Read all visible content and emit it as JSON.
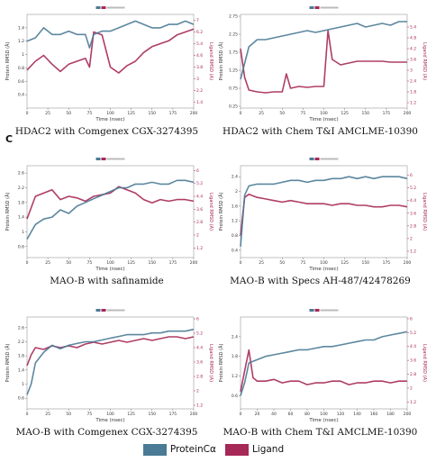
{
  "section_label": "C",
  "colors": {
    "protein": "#4a7a95",
    "ligand": "#a62856"
  },
  "legend": [
    {
      "label": "ProteinCα",
      "color": "#4a7a95"
    },
    {
      "label": "Ligand",
      "color": "#a62856"
    }
  ],
  "chart_data": [
    {
      "type": "line",
      "caption": "HDAC2 with Comgenex CGX-3274395",
      "xlabel": "Time (nsec)",
      "ylabel": "Protein RMSD (Å)",
      "y2label": "Ligand RMSD (Å)",
      "xlim": [
        0,
        200
      ],
      "ylim": [
        0.2,
        1.6
      ],
      "y2lim": [
        1.0,
        7.4
      ],
      "xticks": [
        0,
        25,
        50,
        75,
        100,
        125,
        150,
        175,
        200
      ],
      "yticks": [
        0.4,
        0.6,
        0.8,
        1.0,
        1.2,
        1.4
      ],
      "y2ticks": [
        1.4,
        2.2,
        3.0,
        3.8,
        4.6,
        5.4,
        6.2,
        7.0
      ],
      "series": [
        {
          "name": "ProteinCα",
          "axis": "left",
          "x": [
            0,
            10,
            20,
            30,
            40,
            50,
            60,
            70,
            75,
            80,
            90,
            100,
            110,
            120,
            130,
            140,
            150,
            160,
            170,
            180,
            190,
            200
          ],
          "values": [
            1.2,
            1.25,
            1.4,
            1.3,
            1.3,
            1.35,
            1.3,
            1.3,
            1.1,
            1.3,
            1.35,
            1.35,
            1.4,
            1.45,
            1.5,
            1.45,
            1.4,
            1.4,
            1.45,
            1.45,
            1.5,
            1.45
          ]
        },
        {
          "name": "Ligand",
          "axis": "right",
          "x": [
            0,
            10,
            20,
            30,
            40,
            50,
            60,
            70,
            75,
            80,
            90,
            100,
            110,
            120,
            130,
            140,
            150,
            160,
            170,
            180,
            190,
            200
          ],
          "values": [
            3.6,
            4.2,
            4.6,
            4.0,
            3.5,
            4.0,
            4.2,
            4.4,
            3.8,
            6.2,
            6.0,
            3.8,
            3.4,
            3.9,
            4.2,
            4.8,
            5.2,
            5.4,
            5.6,
            6.0,
            6.2,
            6.4
          ]
        }
      ]
    },
    {
      "type": "line",
      "caption": "HDAC2 with Chem T&I AMCLME-10390",
      "xlabel": "Time (nsec)",
      "ylabel": "Protein RMSD (Å)",
      "y2label": "Ligand RMSD (Å)",
      "xlim": [
        0,
        200
      ],
      "ylim": [
        0.2,
        2.8
      ],
      "y2lim": [
        0.9,
        6.1
      ],
      "xticks": [
        0,
        25,
        50,
        75,
        100,
        125,
        150,
        175,
        200
      ],
      "yticks": [
        0.25,
        0.75,
        1.25,
        1.75,
        2.25,
        2.75
      ],
      "y2ticks": [
        1.2,
        1.8,
        2.4,
        3.0,
        3.6,
        4.2,
        4.8,
        5.4
      ],
      "series": [
        {
          "name": "ProteinCα",
          "axis": "left",
          "x": [
            0,
            10,
            20,
            30,
            40,
            50,
            60,
            70,
            80,
            90,
            100,
            110,
            120,
            130,
            140,
            150,
            160,
            170,
            180,
            190,
            200
          ],
          "values": [
            1.0,
            1.9,
            2.1,
            2.1,
            2.15,
            2.2,
            2.25,
            2.3,
            2.35,
            2.3,
            2.35,
            2.4,
            2.45,
            2.5,
            2.55,
            2.45,
            2.5,
            2.55,
            2.5,
            2.6,
            2.6
          ]
        },
        {
          "name": "Ligand",
          "axis": "right",
          "x": [
            0,
            5,
            10,
            20,
            30,
            40,
            50,
            55,
            60,
            70,
            80,
            90,
            100,
            105,
            110,
            120,
            130,
            140,
            150,
            160,
            170,
            180,
            190,
            200
          ],
          "values": [
            4.2,
            2.6,
            1.9,
            1.8,
            1.75,
            1.8,
            1.8,
            2.8,
            2.0,
            2.1,
            2.05,
            2.1,
            2.1,
            5.2,
            3.6,
            3.3,
            3.4,
            3.5,
            3.5,
            3.5,
            3.5,
            3.45,
            3.45,
            3.45
          ]
        }
      ]
    },
    {
      "type": "line",
      "caption": "MAO-B with safinamide",
      "xlabel": "Time (nsec)",
      "ylabel": "Protein RMSD (Å)",
      "y2label": "Ligand RMSD (Å)",
      "xlim": [
        0,
        200
      ],
      "ylim": [
        0.3,
        2.8
      ],
      "y2lim": [
        0.6,
        6.3
      ],
      "xticks": [
        0,
        25,
        50,
        75,
        100,
        125,
        150,
        175,
        200
      ],
      "yticks": [
        0.6,
        1.0,
        1.4,
        1.8,
        2.2,
        2.6
      ],
      "y2ticks": [
        1.2,
        2.0,
        2.8,
        3.6,
        4.4,
        5.2,
        6.0
      ],
      "series": [
        {
          "name": "ProteinCα",
          "axis": "left",
          "x": [
            0,
            10,
            20,
            30,
            40,
            50,
            60,
            70,
            80,
            90,
            100,
            110,
            120,
            130,
            140,
            150,
            160,
            170,
            180,
            190,
            200
          ],
          "values": [
            0.8,
            1.2,
            1.35,
            1.4,
            1.6,
            1.5,
            1.7,
            1.8,
            1.9,
            2.0,
            2.1,
            2.2,
            2.2,
            2.3,
            2.3,
            2.35,
            2.3,
            2.3,
            2.4,
            2.4,
            2.35
          ]
        },
        {
          "name": "Ligand",
          "axis": "right",
          "x": [
            0,
            10,
            20,
            30,
            40,
            50,
            60,
            70,
            80,
            90,
            100,
            110,
            120,
            130,
            140,
            150,
            160,
            170,
            180,
            190,
            200
          ],
          "values": [
            3.0,
            4.4,
            4.6,
            4.8,
            4.2,
            4.4,
            4.3,
            4.1,
            4.4,
            4.5,
            4.6,
            5.0,
            4.8,
            4.6,
            4.2,
            4.0,
            4.2,
            4.1,
            4.2,
            4.2,
            4.1
          ]
        }
      ]
    },
    {
      "type": "line",
      "caption": "MAO-B with Specs AH-487/42478269",
      "xlabel": "Time (nsec)",
      "ylabel": "Protein RMSD (Å)",
      "y2label": "Ligand RMSD (Å)",
      "xlim": [
        0,
        200
      ],
      "ylim": [
        0.2,
        2.7
      ],
      "y2lim": [
        0.8,
        6.6
      ],
      "xticks": [
        0,
        25,
        50,
        75,
        100,
        125,
        150,
        175,
        200
      ],
      "yticks": [
        0.4,
        0.8,
        1.2,
        1.6,
        2.0,
        2.4
      ],
      "y2ticks": [
        1.2,
        2.0,
        2.8,
        3.6,
        4.4,
        5.2,
        6.0
      ],
      "series": [
        {
          "name": "ProteinCα",
          "axis": "left",
          "x": [
            0,
            5,
            10,
            20,
            30,
            40,
            50,
            60,
            70,
            80,
            90,
            100,
            110,
            120,
            130,
            140,
            150,
            160,
            170,
            180,
            190,
            200
          ],
          "values": [
            0.5,
            1.9,
            2.15,
            2.2,
            2.2,
            2.2,
            2.25,
            2.3,
            2.3,
            2.25,
            2.3,
            2.3,
            2.35,
            2.35,
            2.4,
            2.35,
            2.4,
            2.35,
            2.4,
            2.4,
            2.4,
            2.35
          ]
        },
        {
          "name": "Ligand",
          "axis": "right",
          "x": [
            0,
            5,
            10,
            20,
            30,
            40,
            50,
            60,
            70,
            80,
            90,
            100,
            110,
            120,
            130,
            140,
            150,
            160,
            170,
            180,
            190,
            200
          ],
          "values": [
            2.2,
            4.6,
            4.8,
            4.6,
            4.5,
            4.4,
            4.3,
            4.4,
            4.3,
            4.2,
            4.2,
            4.2,
            4.1,
            4.2,
            4.2,
            4.1,
            4.1,
            4.0,
            4.0,
            4.1,
            4.1,
            4.0
          ]
        }
      ]
    },
    {
      "type": "line",
      "caption": "MAO-B with Comgenex CGX-3274395",
      "xlabel": "Time (nsec)",
      "ylabel": "Protein RMSD (Å)",
      "y2label": "Ligand RMSD (Å)",
      "xlim": [
        0,
        200
      ],
      "ylim": [
        0.3,
        2.9
      ],
      "y2lim": [
        1.0,
        6.1
      ],
      "xticks": [
        0,
        25,
        50,
        75,
        100,
        125,
        150,
        175,
        200
      ],
      "yticks": [
        0.6,
        1.0,
        1.4,
        1.8,
        2.2,
        2.6
      ],
      "y2ticks": [
        1.2,
        2.0,
        2.8,
        3.6,
        4.4,
        5.2,
        6.0
      ],
      "series": [
        {
          "name": "ProteinCα",
          "axis": "left",
          "x": [
            0,
            5,
            10,
            20,
            30,
            40,
            50,
            60,
            70,
            80,
            90,
            100,
            110,
            120,
            130,
            140,
            150,
            160,
            170,
            180,
            190,
            200
          ],
          "values": [
            0.7,
            1.0,
            1.6,
            1.9,
            2.1,
            2.0,
            2.1,
            2.15,
            2.2,
            2.2,
            2.25,
            2.3,
            2.35,
            2.4,
            2.4,
            2.4,
            2.45,
            2.45,
            2.5,
            2.5,
            2.5,
            2.55
          ]
        },
        {
          "name": "Ligand",
          "axis": "right",
          "x": [
            0,
            5,
            10,
            20,
            30,
            40,
            50,
            60,
            70,
            80,
            90,
            100,
            110,
            120,
            130,
            140,
            150,
            160,
            170,
            180,
            190,
            200
          ],
          "values": [
            3.4,
            4.0,
            4.4,
            4.3,
            4.5,
            4.4,
            4.5,
            4.4,
            4.6,
            4.7,
            4.6,
            4.7,
            4.8,
            4.7,
            4.8,
            4.9,
            4.8,
            4.9,
            5.0,
            5.0,
            4.9,
            5.0
          ]
        }
      ]
    },
    {
      "type": "line",
      "caption": "MAO-B with Chem T&I AMCLME-10390",
      "xlabel": "Time (nsec)",
      "ylabel": "Protein RMSD (Å)",
      "y2label": "Ligand RMSD (Å)",
      "xlim": [
        0,
        200
      ],
      "ylim": [
        0.2,
        3.0
      ],
      "y2lim": [
        0.8,
        6.1
      ],
      "xticks": [
        0,
        20,
        40,
        60,
        80,
        100,
        120,
        140,
        160,
        180,
        200
      ],
      "yticks": [
        0.6,
        1.2,
        1.8,
        2.4
      ],
      "y2ticks": [
        1.2,
        2.0,
        2.8,
        3.6,
        4.4,
        5.2,
        6.0
      ],
      "series": [
        {
          "name": "ProteinCα",
          "axis": "left",
          "x": [
            0,
            5,
            10,
            20,
            30,
            40,
            50,
            60,
            70,
            80,
            90,
            100,
            110,
            120,
            130,
            140,
            150,
            160,
            170,
            180,
            190,
            200
          ],
          "values": [
            0.6,
            1.0,
            1.6,
            1.7,
            1.8,
            1.85,
            1.9,
            1.95,
            2.0,
            2.0,
            2.05,
            2.1,
            2.1,
            2.15,
            2.2,
            2.25,
            2.3,
            2.3,
            2.4,
            2.45,
            2.5,
            2.55
          ]
        },
        {
          "name": "Ligand",
          "axis": "right",
          "x": [
            0,
            5,
            10,
            15,
            20,
            30,
            40,
            50,
            60,
            70,
            80,
            90,
            100,
            110,
            120,
            130,
            140,
            150,
            160,
            170,
            180,
            190,
            200
          ],
          "values": [
            1.8,
            3.0,
            4.2,
            2.6,
            2.4,
            2.4,
            2.5,
            2.3,
            2.4,
            2.4,
            2.2,
            2.3,
            2.3,
            2.4,
            2.4,
            2.2,
            2.3,
            2.3,
            2.4,
            2.4,
            2.3,
            2.4,
            2.4
          ]
        }
      ]
    }
  ]
}
